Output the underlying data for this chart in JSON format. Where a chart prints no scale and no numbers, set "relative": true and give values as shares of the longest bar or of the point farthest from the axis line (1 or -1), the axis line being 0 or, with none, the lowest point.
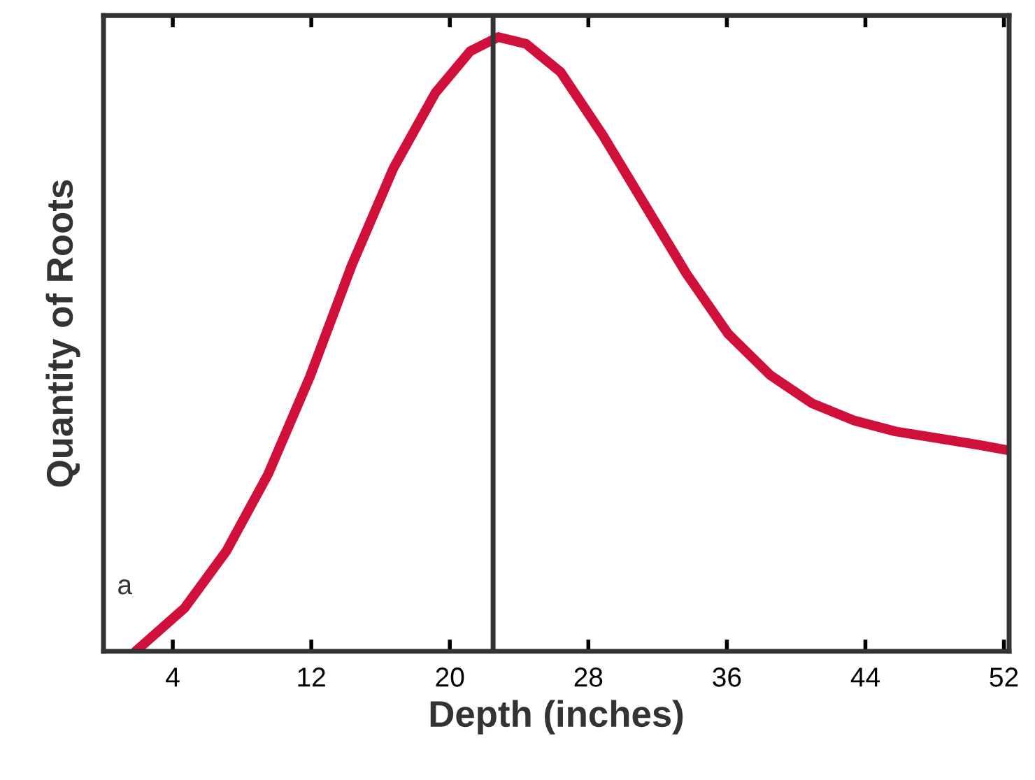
{
  "chart_data": {
    "type": "line",
    "xlabel": "Depth (inches)",
    "ylabel": "Quantity of Roots",
    "relative": true,
    "x": [
      1.85,
      4.67,
      7.09,
      9.5,
      11.92,
      14.33,
      16.75,
      19.16,
      21.18,
      22.79,
      24.4,
      26.4,
      28.82,
      31.24,
      33.66,
      36.07,
      38.49,
      40.9,
      43.32,
      45.73,
      48.15,
      50.56,
      52.3
    ],
    "series": [
      {
        "color": "#d0103a",
        "values": [
          0,
          0.07,
          0.163,
          0.288,
          0.447,
          0.628,
          0.787,
          0.909,
          0.977,
          1.0,
          0.989,
          0.943,
          0.841,
          0.728,
          0.615,
          0.517,
          0.45,
          0.404,
          0.376,
          0.358,
          0.347,
          0.336,
          0.327
        ]
      }
    ],
    "xlim": [
      0,
      52.3
    ],
    "xticks": [
      4,
      12,
      20,
      28,
      36,
      44,
      52
    ],
    "ref_lines": [
      {
        "axis": "x",
        "value": 22.5,
        "color": "#333333"
      }
    ],
    "annotations": [
      "a"
    ],
    "grid": false,
    "marker": "none",
    "line_style": "solid"
  }
}
